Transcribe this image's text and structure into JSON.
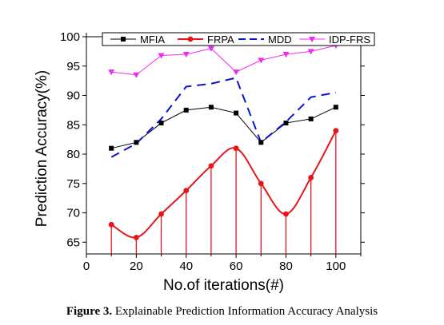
{
  "caption": {
    "label": "Figure 3.",
    "text": " Explainable Prediction Information Accuracy Analysis"
  },
  "chart_data": {
    "type": "line",
    "xlabel": "No.of iterations(#)",
    "ylabel": "Prediction Accuracy(%)",
    "xlim": [
      0,
      110
    ],
    "ylim": [
      63,
      100
    ],
    "xticks": [
      0,
      20,
      40,
      60,
      80,
      100
    ],
    "yticks": [
      65,
      70,
      75,
      80,
      85,
      90,
      95,
      100
    ],
    "legend_position": "top",
    "x": [
      10,
      20,
      30,
      40,
      50,
      60,
      70,
      80,
      90,
      100
    ],
    "series": [
      {
        "name": "MFIA",
        "color": "#000000",
        "style": "solid-thin",
        "marker": "square",
        "values": [
          81,
          82,
          85.3,
          87.5,
          88,
          87,
          82,
          85.3,
          86,
          88
        ]
      },
      {
        "name": "FRPA",
        "color": "#e8141a",
        "style": "smooth-stem",
        "marker": "circle",
        "values": [
          68,
          65.8,
          69.8,
          73.8,
          78,
          81,
          75,
          69.8,
          76,
          84
        ]
      },
      {
        "name": "MDD",
        "color": "#0a14d6",
        "style": "dashed",
        "marker": "none",
        "values": [
          79.5,
          81.8,
          86,
          91.5,
          92,
          93,
          82,
          85.5,
          89.7,
          90.5
        ]
      },
      {
        "name": "IDP-FRS",
        "color": "#ee2cee",
        "style": "solid-thin",
        "marker": "triangle-down",
        "values": [
          94,
          93.5,
          96.8,
          97,
          98,
          94,
          96,
          97,
          97.5,
          98.5
        ]
      }
    ]
  }
}
